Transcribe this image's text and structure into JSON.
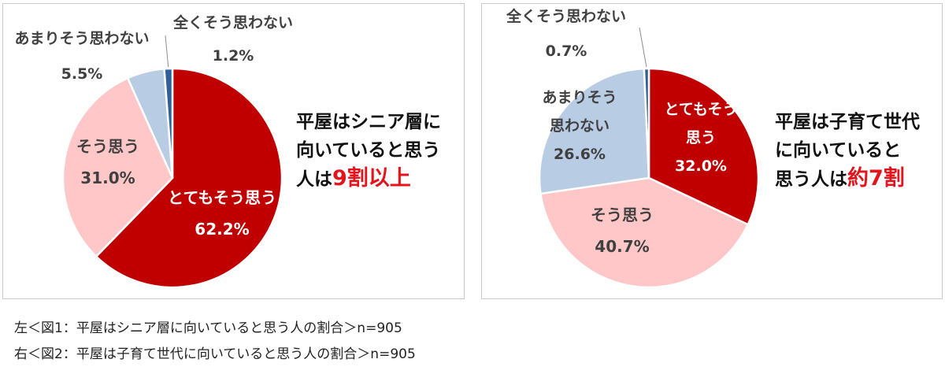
{
  "chart_data": [
    {
      "type": "pie",
      "start_angle_deg": 0,
      "direction": "clockwise",
      "slices": [
        {
          "label": "とてもそう思う",
          "value": 62.2,
          "value_label": "62.2%",
          "color": "#c00000",
          "text_color": "#ffffff"
        },
        {
          "label": "そう思う",
          "value": 31.0,
          "value_label": "31.0%",
          "color": "#ffc7c7",
          "text_color": "#404040"
        },
        {
          "label": "あまりそう思わない",
          "value": 5.5,
          "value_label": "5.5%",
          "color": "#b8cce4",
          "text_color": "#404040"
        },
        {
          "label": "全くそう思わない",
          "value": 1.2,
          "value_label": "1.2%",
          "color": "#2e5f99",
          "text_color": "#404040"
        }
      ],
      "callout": {
        "lines": [
          "平屋はシニア層に",
          "向いていると思う"
        ],
        "last_prefix": "人は",
        "highlight": "9割以上"
      }
    },
    {
      "type": "pie",
      "start_angle_deg": 0,
      "direction": "clockwise",
      "slices": [
        {
          "label": "とてもそう思う",
          "value": 32.0,
          "value_label": "32.0%",
          "color": "#c00000",
          "text_color": "#ffffff"
        },
        {
          "label": "そう思う",
          "value": 40.7,
          "value_label": "40.7%",
          "color": "#ffc7c7",
          "text_color": "#404040"
        },
        {
          "label": "あまりそう思わない",
          "value": 26.6,
          "value_label": "26.6%",
          "color": "#b8cce4",
          "text_color": "#404040"
        },
        {
          "label": "全くそう思わない",
          "value": 0.7,
          "value_label": "0.7%",
          "color": "#2e5f99",
          "text_color": "#404040"
        }
      ],
      "callout": {
        "lines": [
          "平屋は子育て世代",
          "に向いていると"
        ],
        "last_prefix": "思う人は",
        "highlight": "約7割"
      }
    }
  ],
  "captions": [
    "左＜図1：平屋はシニア層に向いていると思う人の割合＞n=905",
    "右＜図2：平屋は子育て世代に向いていると思う人の割合＞n=905"
  ]
}
